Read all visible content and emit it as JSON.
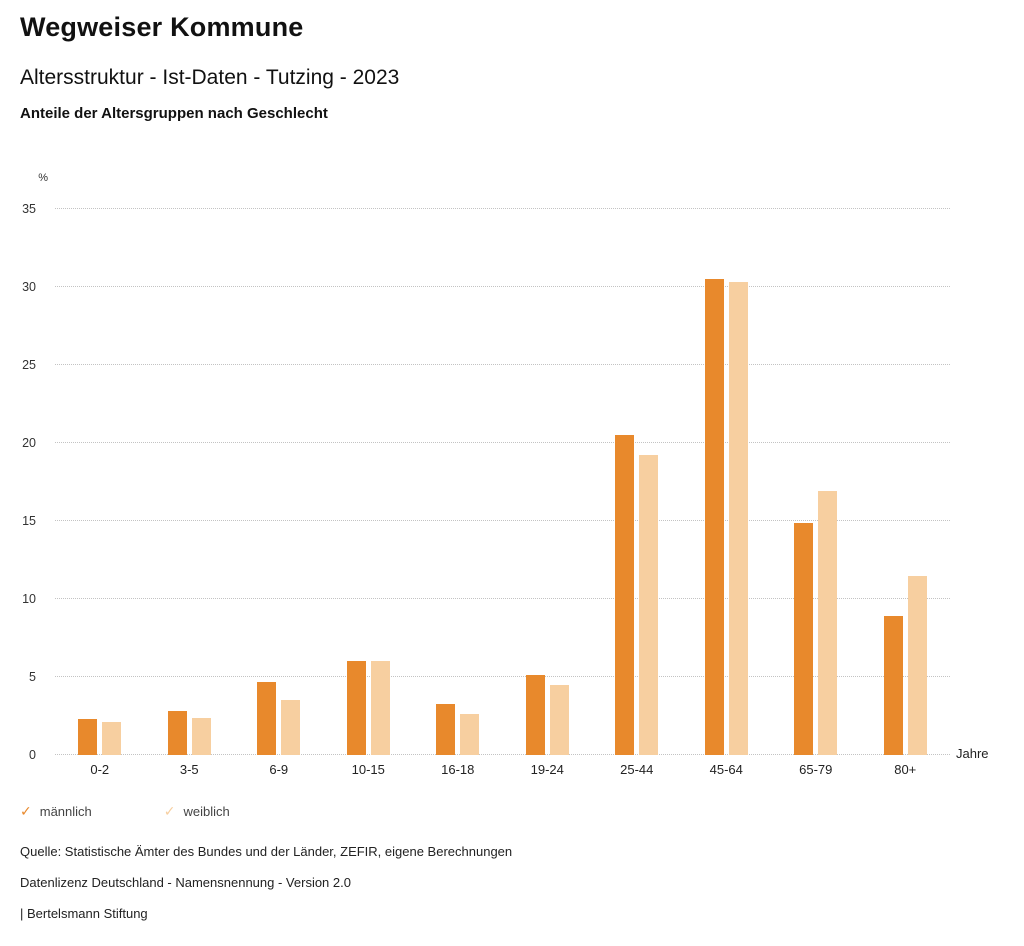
{
  "header": {
    "title": "Wegweiser Kommune",
    "subtitle": "Altersstruktur - Ist-Daten - Tutzing - 2023",
    "chart_heading": "Anteile der Altersgruppen nach Geschlecht"
  },
  "chart_data": {
    "type": "bar",
    "title": "Anteile der Altersgruppen nach Geschlecht",
    "categories": [
      "0-2",
      "3-5",
      "6-9",
      "10-15",
      "16-18",
      "19-24",
      "25-44",
      "45-64",
      "65-79",
      "80+"
    ],
    "series": [
      {
        "name": "männlich",
        "color": "#E8892C",
        "values": [
          2.3,
          2.8,
          4.7,
          6.0,
          3.3,
          5.1,
          20.5,
          30.5,
          14.9,
          8.9
        ]
      },
      {
        "name": "weiblich",
        "color": "#F7CFA0",
        "values": [
          2.1,
          2.4,
          3.5,
          6.0,
          2.6,
          4.5,
          19.2,
          30.3,
          16.9,
          11.5
        ]
      }
    ],
    "ylabel": "%",
    "xlabel": "Jahre",
    "ylim": [
      0,
      35
    ],
    "yticks": [
      0,
      5,
      10,
      15,
      20,
      25,
      30,
      35
    ],
    "grid": true,
    "legend_position": "bottom-left",
    "legend_marker": "✓"
  },
  "footer": {
    "source": "Quelle: Statistische Ämter des Bundes und der Länder, ZEFIR, eigene Berechnungen",
    "license": "Datenlizenz Deutschland - Namensnennung - Version 2.0",
    "attribution": "| Bertelsmann Stiftung"
  }
}
